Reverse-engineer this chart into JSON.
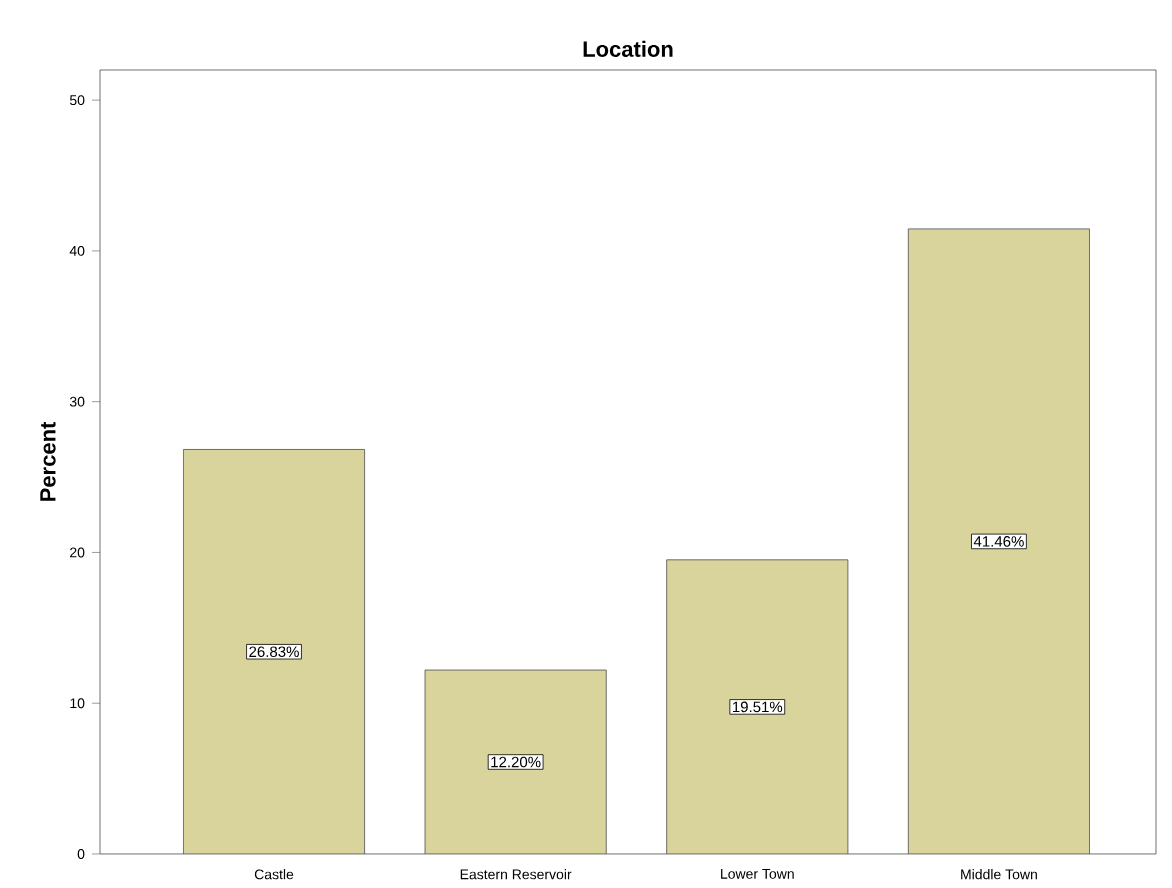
{
  "chart_data": {
    "type": "bar",
    "title": "Location",
    "ylabel": "Percent",
    "categories": [
      "Castle",
      "Eastern Reservoir",
      "Lower Town",
      "Middle Town"
    ],
    "values": [
      26.83,
      12.2,
      19.51,
      41.46
    ],
    "value_labels": [
      "26.83%",
      "12.20%",
      "19.51%",
      "41.46%"
    ],
    "color": "#d8d49c",
    "ylim": [
      0,
      52
    ],
    "yticks": [
      0,
      10,
      20,
      30,
      40,
      50
    ],
    "grid": false
  }
}
